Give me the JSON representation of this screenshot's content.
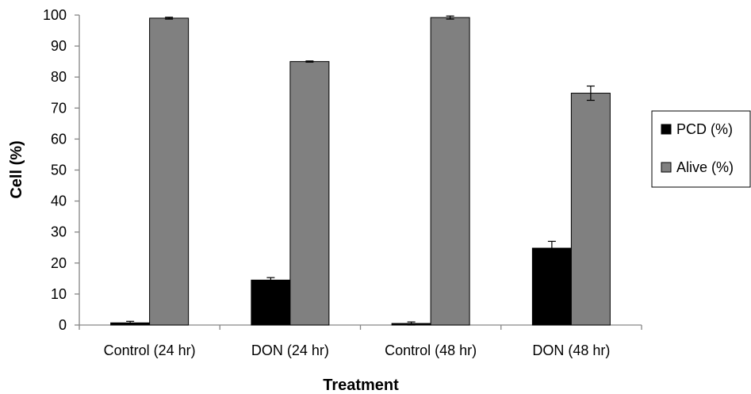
{
  "chart_data": {
    "type": "bar",
    "xlabel": "Treatment",
    "ylabel": "Cell (%)",
    "ylim": [
      0,
      100
    ],
    "yticks": [
      "0",
      "10",
      "20",
      "30",
      "40",
      "50",
      "60",
      "70",
      "80",
      "90",
      "100"
    ],
    "categories": [
      "Control (24 hr)",
      "DON (24 hr)",
      "Control (48 hr)",
      "DON (48 hr)"
    ],
    "series": [
      {
        "name": "PCD (%)",
        "color": "#000000",
        "values": [
          0.7,
          14.5,
          0.5,
          24.8
        ],
        "errors": [
          0.5,
          0.8,
          0.5,
          2.2
        ]
      },
      {
        "name": "Alive (%)",
        "color": "#808080",
        "values": [
          99.0,
          85.0,
          99.2,
          74.8
        ],
        "errors": [
          0.3,
          0.2,
          0.5,
          2.3
        ]
      }
    ],
    "legend_position": "right",
    "grid": false
  }
}
